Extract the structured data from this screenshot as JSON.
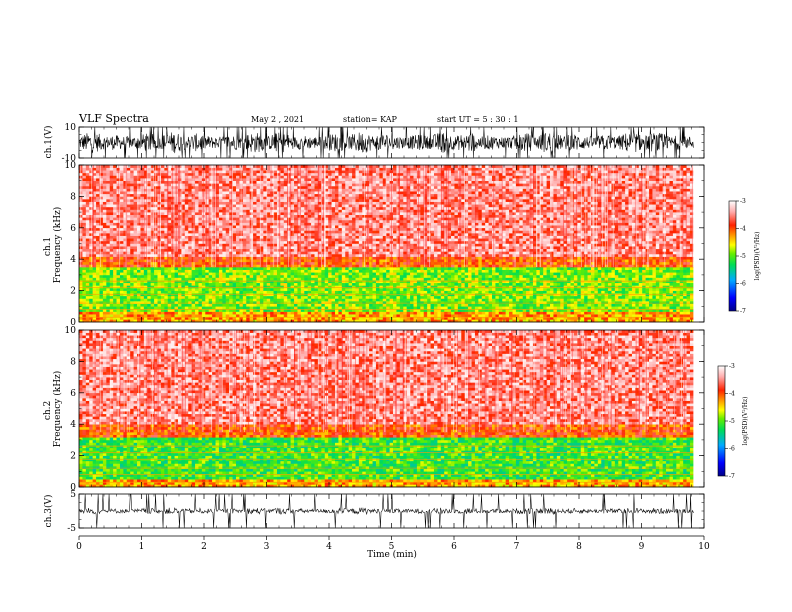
{
  "header": {
    "title": "VLF Spectra",
    "date": "May 2  , 2021",
    "station": "station= KAP",
    "start_time": "start  UT =   5  : 30 : 1"
  },
  "colors": {
    "colormap": [
      "#000088",
      "#0000ff",
      "#00aaff",
      "#00dd55",
      "#66ee00",
      "#ffff00",
      "#ff8800",
      "#ff2200",
      "#ffaaaa",
      "#ffffff"
    ]
  },
  "chart_data": [
    {
      "type": "line",
      "name": "waveform-ch1",
      "ylabel": "ch.1(V)",
      "yticks": [
        "10",
        "-10"
      ],
      "ylim": [
        -10,
        10
      ],
      "x_range_min": [
        0,
        9.83
      ],
      "signal_band_v": [
        -7,
        7
      ],
      "mean_v": 0
    },
    {
      "type": "heatmap",
      "name": "spectrogram-ch1",
      "ylabel": "ch.1\nFrequency  (kHz)",
      "yticks": [
        "0",
        "2",
        "4",
        "6",
        "8",
        "10"
      ],
      "ylim": [
        0,
        10
      ],
      "x_range_min": [
        0,
        9.83
      ],
      "colorbar": {
        "label": "log(PSD)(V²/Hz)",
        "ticks": [
          "-3",
          "-4",
          "-5",
          "-6",
          "-7"
        ],
        "range": [
          -7,
          -3
        ]
      },
      "bands": [
        {
          "from_khz": 0,
          "to_khz": 0.6,
          "level": -4.3
        },
        {
          "from_khz": 0.6,
          "to_khz": 3.5,
          "level": -4.9
        },
        {
          "from_khz": 3.5,
          "to_khz": 4.2,
          "level": -4.0
        },
        {
          "from_khz": 4.2,
          "to_khz": 10,
          "level": -3.5
        }
      ]
    },
    {
      "type": "heatmap",
      "name": "spectrogram-ch2",
      "ylabel": "ch.2\nFrequency  (kHz)",
      "yticks": [
        "0",
        "2",
        "4",
        "6",
        "8",
        "10"
      ],
      "ylim": [
        0,
        10
      ],
      "x_range_min": [
        0,
        9.83
      ],
      "colorbar": {
        "label": "log(PSD)(V²/Hz)",
        "ticks": [
          "-3",
          "-4",
          "-5",
          "-6",
          "-7"
        ],
        "range": [
          -7,
          -3
        ]
      },
      "bands": [
        {
          "from_khz": 0,
          "to_khz": 0.5,
          "level": -4.3
        },
        {
          "from_khz": 0.5,
          "to_khz": 3.2,
          "level": -5.1
        },
        {
          "from_khz": 3.2,
          "to_khz": 4.0,
          "level": -4.0
        },
        {
          "from_khz": 4.0,
          "to_khz": 10,
          "level": -3.5
        }
      ]
    },
    {
      "type": "line",
      "name": "waveform-ch3",
      "ylabel": "ch.3(V)",
      "xlabel": "Time  (min)",
      "xticks": [
        "0",
        "1",
        "2",
        "3",
        "4",
        "5",
        "6",
        "7",
        "8",
        "9",
        "10"
      ],
      "xlim": [
        0,
        10
      ],
      "yticks": [
        "5",
        "-5"
      ],
      "ylim": [
        -5,
        5
      ],
      "x_range_min": [
        0,
        9.83
      ],
      "signal_band_v": [
        -1,
        1
      ],
      "mean_v": 0
    }
  ]
}
